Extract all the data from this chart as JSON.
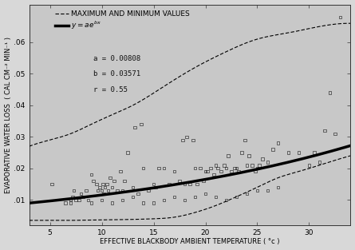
{
  "title": "",
  "xlabel": "EFFECTIVE BLACKBODY AMBIENT TEMPERATURE ( °c )",
  "ylabel": "EVAPORATIVE WATER LOSS  ( CAL CM⁻² MIN⁻¹ )",
  "xlim": [
    3,
    34
  ],
  "ylim": [
    0.002,
    0.072
  ],
  "xticks": [
    5,
    10,
    15,
    20,
    25,
    30
  ],
  "yticks": [
    0.01,
    0.02,
    0.03,
    0.04,
    0.05,
    0.06
  ],
  "a": 0.00808,
  "b": 0.03571,
  "param_a": "a = 0.00808",
  "param_b": "b = 0.03571",
  "param_r": "r = 0.55",
  "legend_line1": "MAXIMUM AND MINIMUM VALUES",
  "scatter_x": [
    5.2,
    7.0,
    7.2,
    7.3,
    7.5,
    7.8,
    8.0,
    8.2,
    8.5,
    8.7,
    9.0,
    9.2,
    9.5,
    9.6,
    9.8,
    10.0,
    10.1,
    10.2,
    10.3,
    10.5,
    10.6,
    10.8,
    11.0,
    11.2,
    11.5,
    11.8,
    12.0,
    12.2,
    12.5,
    13.0,
    13.2,
    13.5,
    13.8,
    14.0,
    14.5,
    15.0,
    15.2,
    15.5,
    16.0,
    16.5,
    17.0,
    17.5,
    17.8,
    18.0,
    18.2,
    18.5,
    18.8,
    19.0,
    19.2,
    19.5,
    19.8,
    20.0,
    20.2,
    20.5,
    20.8,
    21.0,
    21.2,
    21.5,
    21.8,
    22.0,
    22.2,
    22.5,
    22.8,
    23.0,
    23.2,
    23.5,
    23.8,
    24.0,
    24.2,
    24.5,
    24.8,
    25.0,
    25.2,
    25.5,
    26.0,
    26.5,
    27.0,
    28.0,
    29.0,
    30.0,
    30.5,
    31.0,
    31.5,
    32.0,
    32.5,
    33.0,
    6.5,
    7.0,
    9.0,
    10.0,
    11.0,
    12.0,
    13.0,
    14.0,
    15.0,
    16.0,
    17.0,
    18.0,
    19.0,
    20.0,
    21.0,
    22.0,
    23.0,
    24.0,
    25.0,
    26.0,
    27.0
  ],
  "scatter_y": [
    0.015,
    0.01,
    0.011,
    0.013,
    0.01,
    0.01,
    0.012,
    0.011,
    0.013,
    0.01,
    0.018,
    0.016,
    0.015,
    0.013,
    0.014,
    0.013,
    0.015,
    0.012,
    0.014,
    0.015,
    0.013,
    0.017,
    0.014,
    0.016,
    0.013,
    0.019,
    0.013,
    0.016,
    0.025,
    0.014,
    0.033,
    0.012,
    0.034,
    0.02,
    0.013,
    0.015,
    0.014,
    0.02,
    0.02,
    0.015,
    0.019,
    0.016,
    0.029,
    0.015,
    0.03,
    0.015,
    0.029,
    0.02,
    0.015,
    0.02,
    0.016,
    0.019,
    0.019,
    0.02,
    0.018,
    0.021,
    0.02,
    0.019,
    0.021,
    0.02,
    0.024,
    0.019,
    0.02,
    0.02,
    0.019,
    0.025,
    0.029,
    0.021,
    0.024,
    0.021,
    0.019,
    0.02,
    0.021,
    0.023,
    0.022,
    0.026,
    0.028,
    0.025,
    0.025,
    0.021,
    0.025,
    0.022,
    0.032,
    0.044,
    0.031,
    0.068,
    0.009,
    0.009,
    0.009,
    0.01,
    0.009,
    0.01,
    0.011,
    0.009,
    0.009,
    0.01,
    0.011,
    0.01,
    0.011,
    0.012,
    0.011,
    0.01,
    0.011,
    0.012,
    0.013,
    0.013,
    0.014
  ],
  "max_curve_x": [
    3,
    5,
    7,
    9,
    11,
    13,
    16,
    19,
    22,
    25,
    28,
    31,
    34
  ],
  "max_curve_y": [
    0.027,
    0.029,
    0.031,
    0.034,
    0.037,
    0.04,
    0.046,
    0.052,
    0.057,
    0.061,
    0.063,
    0.065,
    0.066
  ],
  "min_curve_x": [
    3,
    5,
    7,
    9,
    11,
    13,
    15,
    17,
    19,
    21,
    23,
    25,
    27,
    29,
    31,
    34
  ],
  "min_curve_y": [
    0.0035,
    0.0035,
    0.0035,
    0.0036,
    0.0037,
    0.0038,
    0.004,
    0.0045,
    0.006,
    0.0082,
    0.011,
    0.014,
    0.017,
    0.019,
    0.021,
    0.024
  ],
  "bg_color": "#d8d8d8",
  "plot_bg_color": "#c8c8c8",
  "line_color": "#000000",
  "font_size": 6.5,
  "axis_font_size": 6.0
}
